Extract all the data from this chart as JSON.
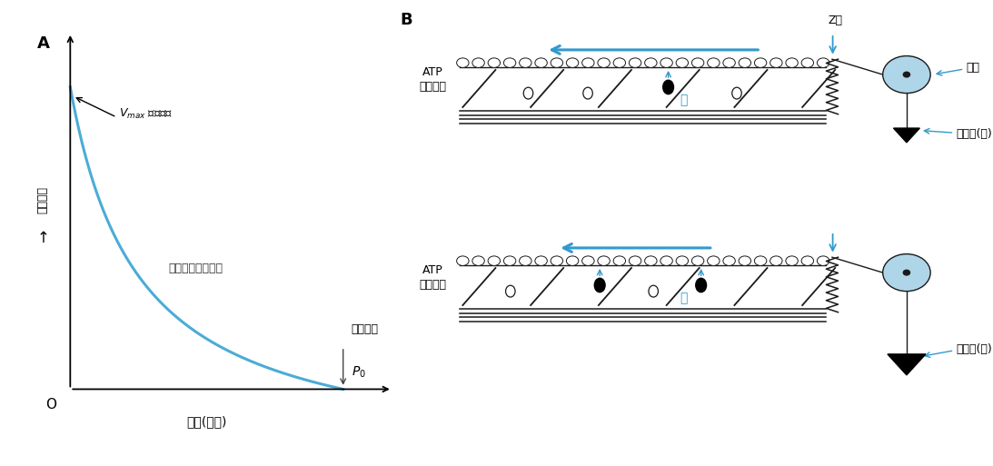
{
  "panel_A": {
    "label": "A",
    "curve_color": "#4BACD6",
    "curve_lw": 2.2,
    "xlabel": "负荷(张力)",
    "ylabel": "缩短速度",
    "origin_label": "O",
    "vmax_text": "等张收缩",
    "p0_top_label": "等长收缩",
    "middle_label": "先等长后等张收缩",
    "text_color": "#222222"
  },
  "panel_B": {
    "label": "B",
    "top_atp": "ATP",
    "top_hydro": "快速水解",
    "bottom_atp": "ATP",
    "bottom_hydro": "缓慢水解",
    "z_disc_label": "Z盘",
    "pulley_label": "滑轮",
    "small_load_label": "后负荷(小)",
    "large_load_label": "后负荷(大)",
    "fast_label": "快",
    "slow_label": "慢",
    "arrow_color": "#3399CC",
    "pulley_color": "#AED6E8",
    "dark": "#1a1a1a"
  }
}
